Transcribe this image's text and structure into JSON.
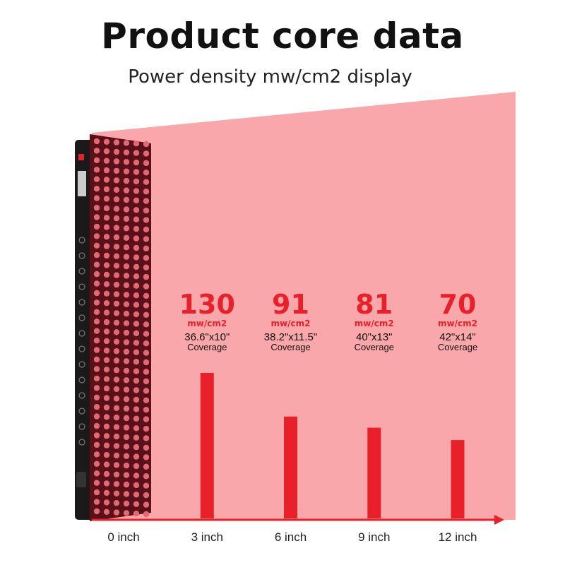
{
  "header": {
    "title": "Product core data",
    "subtitle": "Power density mw/cm2 display"
  },
  "colors": {
    "beam": "#f9a7ab",
    "bar": "#e8202a",
    "value_text": "#e8202a",
    "axis": "#e8202a",
    "device_body": "#1a1a1a",
    "led_face": "#5a1018",
    "led_dot": "#e06a73"
  },
  "chart_data": {
    "type": "bar",
    "x_tick_labels": [
      "0 inch",
      "3 inch",
      "6 inch",
      "9 inch",
      "12 inch"
    ],
    "x": [
      3,
      6,
      9,
      12
    ],
    "values": [
      130,
      91,
      81,
      70
    ],
    "value_unit": "mw/cm2",
    "coverage": [
      "36.6\"x10\"",
      "38.2\"x11.5\"",
      "40\"x13\"",
      "42\"x14\""
    ],
    "coverage_label": "Coverage",
    "xlim": [
      0,
      12
    ]
  }
}
